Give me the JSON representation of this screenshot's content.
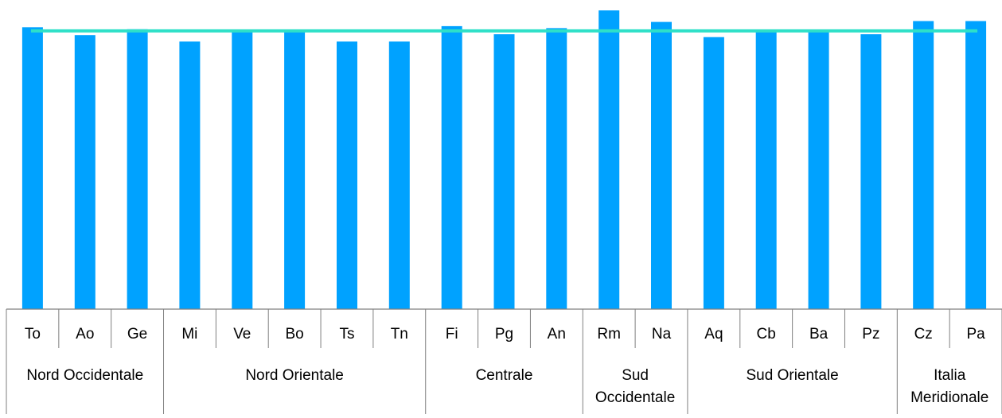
{
  "chart_data": {
    "type": "bar",
    "title": "",
    "xlabel": "",
    "ylabel": "",
    "categories": [
      "To",
      "Ao",
      "Ge",
      "Mi",
      "Ve",
      "Bo",
      "Ts",
      "Tn",
      "Fi",
      "Pg",
      "An",
      "Rm",
      "Na",
      "Aq",
      "Cb",
      "Ba",
      "Pz",
      "Cz",
      "Pa"
    ],
    "groups": [
      {
        "label": [
          "Nord Occidentale"
        ],
        "span": 3
      },
      {
        "label": [
          "Nord Orientale"
        ],
        "span": 5
      },
      {
        "label": [
          "Centrale"
        ],
        "span": 3
      },
      {
        "label": [
          "Sud",
          "Occidentale"
        ],
        "span": 2
      },
      {
        "label": [
          "Sud Orientale"
        ],
        "span": 4
      },
      {
        "label": [
          "Italia",
          "Meridionale"
        ],
        "span": 2
      }
    ],
    "series": [
      {
        "type": "bar",
        "values": [
          100.3,
          97.5,
          99.6,
          95.2,
          99.1,
          99.1,
          95.2,
          95.2,
          100.7,
          97.8,
          100.0,
          106.3,
          102.2,
          96.8,
          98.9,
          99.1,
          97.8,
          102.5,
          102.5
        ]
      },
      {
        "type": "line",
        "value": 99.0
      }
    ],
    "ylim": [
      0,
      110
    ],
    "grid": false,
    "legend": "none",
    "colors": {
      "bar": "#00A2FF",
      "line": "#2EE0C8",
      "axis": "#7F7F7F"
    }
  }
}
